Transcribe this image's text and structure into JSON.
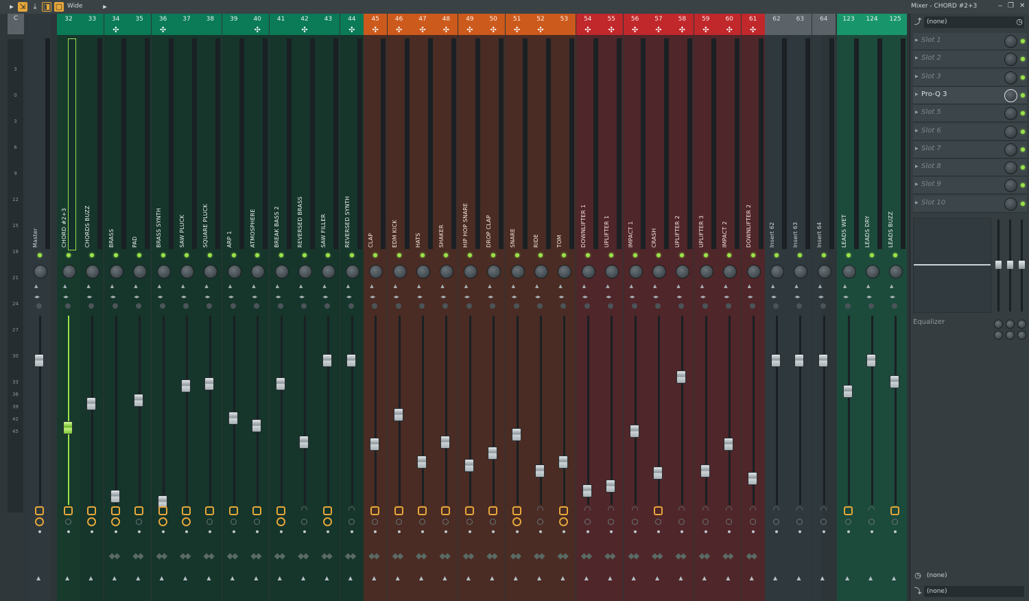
{
  "toolbar": {
    "mode": "Wide",
    "window_title": "Mixer - CHORD #2+3"
  },
  "left_header": {
    "c_label": "C",
    "m_label": "M"
  },
  "scale_labels": [
    "3",
    "0",
    "3",
    "6",
    "9",
    "12",
    "15",
    "18",
    "21",
    "24",
    "27",
    "30",
    "33",
    "36",
    "39",
    "42",
    "45"
  ],
  "colors": {
    "green_hdr": "#0a7a57",
    "orange_hdr": "#cc5a1c",
    "red_hdr": "#c0282b",
    "grey_hdr": "#5b6368",
    "teal_hdr": "#19956c"
  },
  "strips": [
    {
      "num": "",
      "name": "Master",
      "theme": "master",
      "fader": 0.21,
      "fx": true,
      "rec": true,
      "plus": false
    },
    {
      "num": "32",
      "name": "CHORD #2+3",
      "theme": "green",
      "fader": 0.58,
      "fx": true,
      "rec": false,
      "plus": false,
      "selected": true
    },
    {
      "num": "33",
      "name": "CHORDS BUZZ",
      "theme": "green",
      "fader": 0.45,
      "fx": true,
      "rec": true,
      "plus": false
    },
    {
      "num": "34",
      "name": "BRASS",
      "theme": "green",
      "fader": 0.96,
      "fx": true,
      "rec": true,
      "plus": true
    },
    {
      "num": "35",
      "name": "PAD",
      "theme": "green",
      "fader": 0.43,
      "fx": true,
      "rec": false,
      "plus": false
    },
    {
      "num": "36",
      "name": "BRASS SYNTH",
      "theme": "green",
      "fader": 0.99,
      "fx": true,
      "rec": true,
      "plus": true
    },
    {
      "num": "37",
      "name": "SAW PLUCK",
      "theme": "green",
      "fader": 0.35,
      "fx": true,
      "rec": true,
      "plus": false
    },
    {
      "num": "38",
      "name": "SQUARE PLUCK",
      "theme": "green",
      "fader": 0.34,
      "fx": true,
      "rec": false,
      "plus": false
    },
    {
      "num": "39",
      "name": "ARP 1",
      "theme": "green",
      "fader": 0.53,
      "fx": true,
      "rec": false,
      "plus": false
    },
    {
      "num": "40",
      "name": "ATMOSPHERE",
      "theme": "green",
      "fader": 0.57,
      "fx": true,
      "rec": false,
      "plus": true
    },
    {
      "num": "41",
      "name": "BREAK BASS 2",
      "theme": "green",
      "fader": 0.34,
      "fx": true,
      "rec": true,
      "plus": false
    },
    {
      "num": "42",
      "name": "REVERSED BRASS",
      "theme": "green",
      "fader": 0.66,
      "fx": false,
      "rec": false,
      "plus": true
    },
    {
      "num": "43",
      "name": "SAW FILLER",
      "theme": "green",
      "fader": 0.21,
      "fx": true,
      "rec": true,
      "plus": false
    },
    {
      "num": "44",
      "name": "REVERSED SYNTH",
      "theme": "green",
      "fader": 0.21,
      "fx": false,
      "rec": false,
      "plus": true
    },
    {
      "num": "45",
      "name": "CLAP",
      "theme": "orange",
      "fader": 0.67,
      "fx": true,
      "rec": false,
      "plus": true
    },
    {
      "num": "46",
      "name": "EDM KICK",
      "theme": "orange",
      "fader": 0.51,
      "fx": true,
      "rec": false,
      "plus": true
    },
    {
      "num": "47",
      "name": "HATS",
      "theme": "orange",
      "fader": 0.77,
      "fx": true,
      "rec": false,
      "plus": true
    },
    {
      "num": "48",
      "name": "SHAKER",
      "theme": "orange",
      "fader": 0.66,
      "fx": true,
      "rec": false,
      "plus": true
    },
    {
      "num": "49",
      "name": "HIP HOP SNARE",
      "theme": "orange",
      "fader": 0.79,
      "fx": true,
      "rec": false,
      "plus": true
    },
    {
      "num": "50",
      "name": "DROP CLAP",
      "theme": "orange",
      "fader": 0.72,
      "fx": true,
      "rec": false,
      "plus": true
    },
    {
      "num": "51",
      "name": "SNARE",
      "theme": "orange",
      "fader": 0.62,
      "fx": true,
      "rec": true,
      "plus": true
    },
    {
      "num": "52",
      "name": "RIDE",
      "theme": "orange",
      "fader": 0.82,
      "fx": false,
      "rec": false,
      "plus": true
    },
    {
      "num": "53",
      "name": "TOM",
      "theme": "orange",
      "fader": 0.77,
      "fx": true,
      "rec": true,
      "plus": false
    },
    {
      "num": "54",
      "name": "DOWNLIFTER 1",
      "theme": "red",
      "fader": 0.93,
      "fx": false,
      "rec": false,
      "plus": true
    },
    {
      "num": "55",
      "name": "UPLIFTER 1",
      "theme": "red",
      "fader": 0.9,
      "fx": false,
      "rec": false,
      "plus": true
    },
    {
      "num": "56",
      "name": "IMPACT 1",
      "theme": "red",
      "fader": 0.6,
      "fx": false,
      "rec": false,
      "plus": true
    },
    {
      "num": "57",
      "name": "CRASH",
      "theme": "red",
      "fader": 0.83,
      "fx": true,
      "rec": false,
      "plus": true
    },
    {
      "num": "58",
      "name": "UPLIFTER 2",
      "theme": "red",
      "fader": 0.3,
      "fx": false,
      "rec": false,
      "plus": true
    },
    {
      "num": "59",
      "name": "UPLIFTER 3",
      "theme": "red",
      "fader": 0.82,
      "fx": false,
      "rec": false,
      "plus": true
    },
    {
      "num": "60",
      "name": "IMPACT 2",
      "theme": "red",
      "fader": 0.67,
      "fx": false,
      "rec": false,
      "plus": true
    },
    {
      "num": "61",
      "name": "DOWNLIFTER 2",
      "theme": "red",
      "fader": 0.86,
      "fx": false,
      "rec": false,
      "plus": true
    },
    {
      "num": "62",
      "name": "Insert 62",
      "theme": "grey",
      "fader": 0.21,
      "fx": false,
      "rec": false,
      "plus": false
    },
    {
      "num": "63",
      "name": "Insert 63",
      "theme": "grey",
      "fader": 0.21,
      "fx": false,
      "rec": false,
      "plus": false
    },
    {
      "num": "64",
      "name": "Insert 64",
      "theme": "grey",
      "fader": 0.21,
      "fx": false,
      "rec": false,
      "plus": false
    },
    {
      "num": "123",
      "name": "LEADS WET",
      "theme": "teal",
      "fader": 0.38,
      "fx": true,
      "rec": false,
      "plus": false
    },
    {
      "num": "124",
      "name": "LEADS DRY",
      "theme": "teal",
      "fader": 0.21,
      "fx": false,
      "rec": false,
      "plus": false
    },
    {
      "num": "125",
      "name": "LEADS BUZZ",
      "theme": "teal",
      "fader": 0.33,
      "fx": true,
      "rec": false,
      "plus": false
    }
  ],
  "right_panel": {
    "input": "(none)",
    "slots": [
      "Slot 1",
      "Slot 2",
      "Slot 3",
      "Pro-Q 3",
      "Slot 5",
      "Slot 6",
      "Slot 7",
      "Slot 8",
      "Slot 9",
      "Slot 10"
    ],
    "active_slot": 3,
    "eq_label": "Equalizer",
    "output_1": "(none)",
    "output_2": "(none)"
  }
}
